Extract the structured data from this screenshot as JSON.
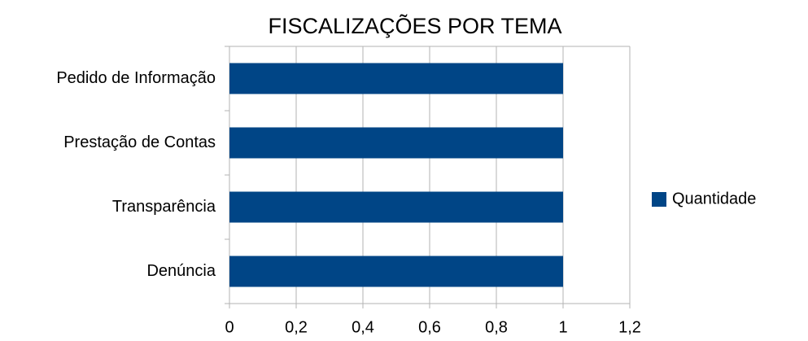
{
  "chart_data": {
    "type": "bar",
    "orientation": "horizontal",
    "title": "FISCALIZAÇÕES POR TEMA",
    "categories": [
      "Denúncia",
      "Transparência",
      "Prestação de Contas",
      "Pedido de Informação"
    ],
    "series": [
      {
        "name": "Quantidade",
        "color": "#004586",
        "values": [
          1,
          1,
          1,
          1
        ]
      }
    ],
    "xlim": [
      0,
      1.2
    ],
    "xticks": [
      0,
      {
        "value": 0.2,
        "label": "0,2"
      },
      {
        "value": 0.4,
        "label": "0,4"
      },
      {
        "value": 0.6,
        "label": "0,6"
      },
      {
        "value": 0.8,
        "label": "0,8"
      },
      1,
      {
        "value": 1.2,
        "label": "1,2"
      }
    ],
    "grid": true,
    "legend": "right"
  }
}
